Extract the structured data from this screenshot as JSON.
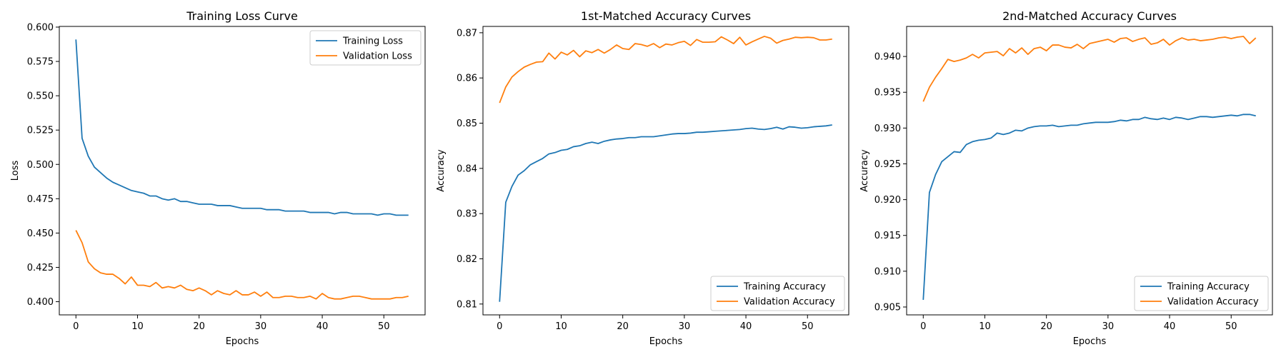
{
  "colors": {
    "training": "#1f77b4",
    "validation": "#ff7f0e"
  },
  "chart_data": [
    {
      "type": "line",
      "title": "Training Loss Curve",
      "xlabel": "Epochs",
      "ylabel": "Loss",
      "xlim": [
        -2.7,
        56.7
      ],
      "ylim": [
        0.3904,
        0.6005
      ],
      "xticks": [
        0,
        10,
        20,
        30,
        40,
        50
      ],
      "yticks": [
        0.4,
        0.425,
        0.45,
        0.475,
        0.5,
        0.525,
        0.55,
        0.575,
        0.6
      ],
      "ytick_labels": [
        "0.400",
        "0.425",
        "0.450",
        "0.475",
        "0.500",
        "0.525",
        "0.550",
        "0.575",
        "0.600"
      ],
      "legend_position": "top-right",
      "grid": false,
      "series": [
        {
          "name": "Training Loss",
          "color": "#1f77b4",
          "values": [
            0.591,
            0.519,
            0.506,
            0.498,
            0.494,
            0.49,
            0.487,
            0.485,
            0.483,
            0.481,
            0.48,
            0.479,
            0.477,
            0.477,
            0.475,
            0.474,
            0.475,
            0.473,
            0.473,
            0.472,
            0.471,
            0.471,
            0.471,
            0.47,
            0.47,
            0.47,
            0.469,
            0.468,
            0.468,
            0.468,
            0.468,
            0.467,
            0.467,
            0.467,
            0.466,
            0.466,
            0.466,
            0.466,
            0.465,
            0.465,
            0.465,
            0.465,
            0.464,
            0.465,
            0.465,
            0.464,
            0.464,
            0.464,
            0.464,
            0.463,
            0.464,
            0.464,
            0.463,
            0.463,
            0.463
          ]
        },
        {
          "name": "Validation Loss",
          "color": "#ff7f0e",
          "values": [
            0.452,
            0.443,
            0.429,
            0.424,
            0.421,
            0.42,
            0.42,
            0.417,
            0.413,
            0.418,
            0.412,
            0.412,
            0.411,
            0.414,
            0.41,
            0.411,
            0.41,
            0.412,
            0.409,
            0.408,
            0.41,
            0.408,
            0.405,
            0.408,
            0.406,
            0.405,
            0.408,
            0.405,
            0.405,
            0.407,
            0.404,
            0.407,
            0.403,
            0.403,
            0.404,
            0.404,
            0.403,
            0.403,
            0.404,
            0.402,
            0.406,
            0.403,
            0.402,
            0.402,
            0.403,
            0.404,
            0.404,
            0.403,
            0.402,
            0.402,
            0.402,
            0.402,
            0.403,
            0.403,
            0.404
          ]
        }
      ]
    },
    {
      "type": "line",
      "title": "1st-Matched Accuracy Curves",
      "xlabel": "Epochs",
      "ylabel": "Accuracy",
      "xlim": [
        -2.7,
        56.7
      ],
      "ylim": [
        0.8076,
        0.8714
      ],
      "xticks": [
        0,
        10,
        20,
        30,
        40,
        50
      ],
      "yticks": [
        0.81,
        0.82,
        0.83,
        0.84,
        0.85,
        0.86,
        0.87
      ],
      "ytick_labels": [
        "0.81",
        "0.82",
        "0.83",
        "0.84",
        "0.85",
        "0.86",
        "0.87"
      ],
      "legend_position": "bottom-right",
      "grid": false,
      "series": [
        {
          "name": "Training Accuracy",
          "color": "#1f77b4",
          "values": [
            0.8105,
            0.8325,
            0.836,
            0.8385,
            0.8395,
            0.8408,
            0.8415,
            0.8422,
            0.8432,
            0.8435,
            0.844,
            0.8442,
            0.8448,
            0.845,
            0.8455,
            0.8458,
            0.8455,
            0.846,
            0.8463,
            0.8465,
            0.8466,
            0.8468,
            0.8468,
            0.847,
            0.847,
            0.847,
            0.8472,
            0.8474,
            0.8476,
            0.8477,
            0.8477,
            0.8478,
            0.848,
            0.848,
            0.8481,
            0.8482,
            0.8483,
            0.8484,
            0.8485,
            0.8486,
            0.8488,
            0.8489,
            0.8487,
            0.8486,
            0.8488,
            0.8491,
            0.8487,
            0.8492,
            0.8491,
            0.8489,
            0.849,
            0.8492,
            0.8493,
            0.8494,
            0.8496
          ]
        },
        {
          "name": "Validation Accuracy",
          "color": "#ff7f0e",
          "values": [
            0.8545,
            0.858,
            0.8602,
            0.8614,
            0.8624,
            0.863,
            0.8635,
            0.8636,
            0.8655,
            0.8642,
            0.8657,
            0.8651,
            0.8661,
            0.8647,
            0.866,
            0.8656,
            0.8663,
            0.8655,
            0.8663,
            0.8673,
            0.8665,
            0.8663,
            0.8676,
            0.8674,
            0.867,
            0.8676,
            0.8667,
            0.8675,
            0.8673,
            0.8678,
            0.8681,
            0.8672,
            0.8685,
            0.8679,
            0.8679,
            0.868,
            0.8691,
            0.8684,
            0.8676,
            0.869,
            0.8673,
            0.868,
            0.8686,
            0.8692,
            0.8688,
            0.8677,
            0.8683,
            0.8686,
            0.869,
            0.8689,
            0.869,
            0.8689,
            0.8684,
            0.8684,
            0.8686
          ]
        }
      ]
    },
    {
      "type": "line",
      "title": "2nd-Matched Accuracy Curves",
      "xlabel": "Epochs",
      "ylabel": "Accuracy",
      "xlim": [
        -2.7,
        56.7
      ],
      "ylim": [
        0.9039,
        0.9442
      ],
      "xticks": [
        0,
        10,
        20,
        30,
        40,
        50
      ],
      "yticks": [
        0.905,
        0.91,
        0.915,
        0.92,
        0.925,
        0.93,
        0.935,
        0.94
      ],
      "ytick_labels": [
        "0.905",
        "0.910",
        "0.915",
        "0.920",
        "0.925",
        "0.930",
        "0.935",
        "0.940"
      ],
      "legend_position": "bottom-right",
      "grid": false,
      "series": [
        {
          "name": "Training Accuracy",
          "color": "#1f77b4",
          "values": [
            0.906,
            0.921,
            0.9235,
            0.9253,
            0.926,
            0.9267,
            0.9266,
            0.9277,
            0.9281,
            0.9283,
            0.9284,
            0.9286,
            0.9293,
            0.9291,
            0.9293,
            0.9297,
            0.9296,
            0.93,
            0.9302,
            0.9303,
            0.9303,
            0.9304,
            0.9302,
            0.9303,
            0.9304,
            0.9304,
            0.9306,
            0.9307,
            0.9308,
            0.9308,
            0.9308,
            0.9309,
            0.9311,
            0.931,
            0.9312,
            0.9312,
            0.9315,
            0.9313,
            0.9312,
            0.9314,
            0.9312,
            0.9315,
            0.9314,
            0.9312,
            0.9314,
            0.9316,
            0.9316,
            0.9315,
            0.9316,
            0.9317,
            0.9318,
            0.9317,
            0.9319,
            0.9319,
            0.9317
          ]
        },
        {
          "name": "Validation Accuracy",
          "color": "#ff7f0e",
          "values": [
            0.9337,
            0.9357,
            0.9371,
            0.9383,
            0.9396,
            0.9393,
            0.9395,
            0.9398,
            0.9403,
            0.9398,
            0.9405,
            0.9406,
            0.9407,
            0.9401,
            0.9411,
            0.9405,
            0.9412,
            0.9403,
            0.9411,
            0.9413,
            0.9408,
            0.9416,
            0.9416,
            0.9413,
            0.9412,
            0.9417,
            0.9411,
            0.9418,
            0.942,
            0.9422,
            0.9424,
            0.942,
            0.9425,
            0.9426,
            0.9421,
            0.9424,
            0.9426,
            0.9417,
            0.9419,
            0.9424,
            0.9416,
            0.9422,
            0.9426,
            0.9423,
            0.9424,
            0.9422,
            0.9423,
            0.9424,
            0.9426,
            0.9427,
            0.9425,
            0.9427,
            0.9428,
            0.9418,
            0.9426
          ]
        }
      ]
    }
  ]
}
